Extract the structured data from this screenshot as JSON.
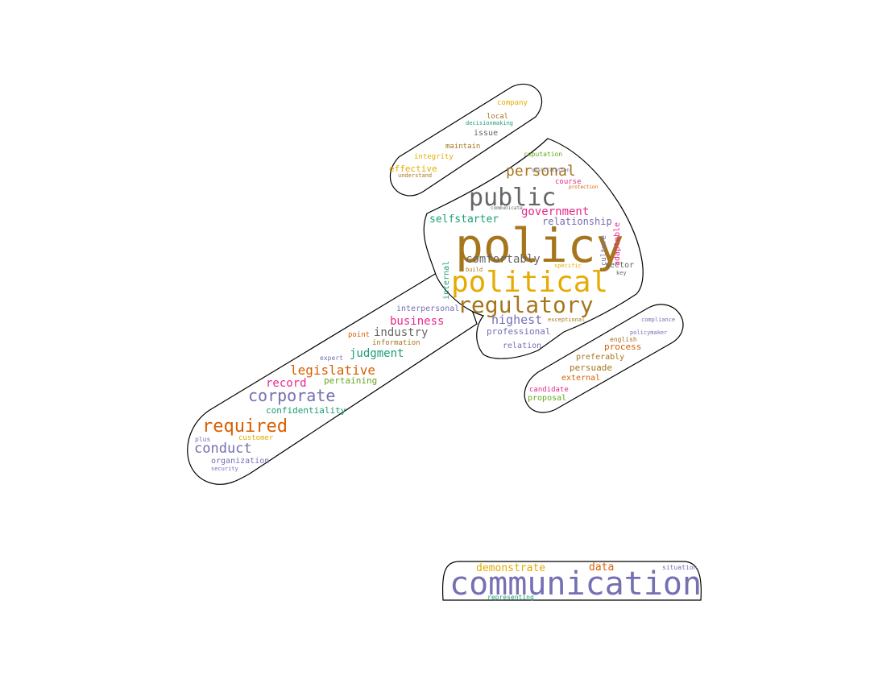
{
  "wordcloud": {
    "shape": "gavel",
    "colors": {
      "gold": "#e6ab02",
      "olive": "#a6761d",
      "purple": "#7570b3",
      "orange": "#d95f02",
      "magenta": "#e7298a",
      "teal": "#1b9e77",
      "green": "#66a61e",
      "gray": "#666666"
    },
    "words": [
      {
        "text": "policy",
        "color": "olive"
      },
      {
        "text": "political",
        "color": "gold"
      },
      {
        "text": "regulatory",
        "color": "olive"
      },
      {
        "text": "public",
        "color": "gray"
      },
      {
        "text": "communication",
        "color": "purple"
      },
      {
        "text": "personal",
        "color": "olive"
      },
      {
        "text": "government",
        "color": "magenta"
      },
      {
        "text": "relationship",
        "color": "purple"
      },
      {
        "text": "selfstarter",
        "color": "teal"
      },
      {
        "text": "comfortably",
        "color": "gray"
      },
      {
        "text": "highest",
        "color": "purple"
      },
      {
        "text": "business",
        "color": "magenta"
      },
      {
        "text": "industry",
        "color": "gray"
      },
      {
        "text": "interpersonal",
        "color": "purple"
      },
      {
        "text": "professional",
        "color": "purple"
      },
      {
        "text": "judgment",
        "color": "teal"
      },
      {
        "text": "legislative",
        "color": "orange"
      },
      {
        "text": "record",
        "color": "magenta"
      },
      {
        "text": "pertaining",
        "color": "green"
      },
      {
        "text": "corporate",
        "color": "purple"
      },
      {
        "text": "confidentiality",
        "color": "teal"
      },
      {
        "text": "required",
        "color": "orange"
      },
      {
        "text": "conduct",
        "color": "purple"
      },
      {
        "text": "organization",
        "color": "purple"
      },
      {
        "text": "customer",
        "color": "gold"
      },
      {
        "text": "security",
        "color": "purple"
      },
      {
        "text": "company",
        "color": "gold"
      },
      {
        "text": "local",
        "color": "olive"
      },
      {
        "text": "decisionmaking",
        "color": "teal"
      },
      {
        "text": "issue",
        "color": "gray"
      },
      {
        "text": "maintain",
        "color": "olive"
      },
      {
        "text": "integrity",
        "color": "gold"
      },
      {
        "text": "effective",
        "color": "gold"
      },
      {
        "text": "understand",
        "color": "olive"
      },
      {
        "text": "reputation",
        "color": "green"
      },
      {
        "text": "course",
        "color": "magenta"
      },
      {
        "text": "qualification",
        "color": "purple"
      },
      {
        "text": "protection",
        "color": "orange"
      },
      {
        "text": "internal",
        "color": "teal"
      },
      {
        "text": "communicate",
        "color": "gray"
      },
      {
        "text": "culture",
        "color": "purple"
      },
      {
        "text": "adaptable",
        "color": "magenta"
      },
      {
        "text": "sector",
        "color": "gray"
      },
      {
        "text": "specific",
        "color": "gold"
      },
      {
        "text": "build",
        "color": "olive"
      },
      {
        "text": "exceptional",
        "color": "olive"
      },
      {
        "text": "relation",
        "color": "purple"
      },
      {
        "text": "information",
        "color": "olive"
      },
      {
        "text": "point",
        "color": "orange"
      },
      {
        "text": "expert",
        "color": "purple"
      },
      {
        "text": "compliance",
        "color": "purple"
      },
      {
        "text": "policymaker",
        "color": "purple"
      },
      {
        "text": "english",
        "color": "olive"
      },
      {
        "text": "process",
        "color": "orange"
      },
      {
        "text": "preferably",
        "color": "olive"
      },
      {
        "text": "persuade",
        "color": "olive"
      },
      {
        "text": "external",
        "color": "orange"
      },
      {
        "text": "candidate",
        "color": "magenta"
      },
      {
        "text": "proposal",
        "color": "green"
      },
      {
        "text": "demonstrate",
        "color": "gold"
      },
      {
        "text": "data",
        "color": "orange"
      },
      {
        "text": "situation",
        "color": "purple"
      },
      {
        "text": "representing",
        "color": "teal"
      },
      {
        "text": "plus",
        "color": "purple"
      },
      {
        "text": "key",
        "color": "gray"
      }
    ]
  }
}
